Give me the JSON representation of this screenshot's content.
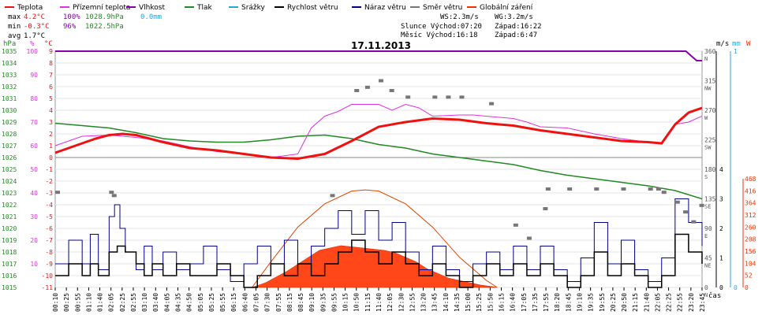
{
  "chart_data": {
    "type": "line",
    "title": "17.11.2013",
    "legend_placement": "top",
    "legend": [
      {
        "name": "Teplota",
        "color": "#ee1111"
      },
      {
        "name": "Přízemní teplota",
        "color": "#dd33dd"
      },
      {
        "name": "Vlhkost",
        "color": "#8800aa"
      },
      {
        "name": "Tlak",
        "color": "#228822"
      },
      {
        "name": "Srážky",
        "color": "#22aadd"
      },
      {
        "name": "Rychlost větru",
        "color": "#000000"
      },
      {
        "name": "Náraz větru",
        "color": "#000088"
      },
      {
        "name": "Směr větru",
        "color": "#777777"
      },
      {
        "name": "Globální záření",
        "color": "#ee3300"
      }
    ],
    "stats": {
      "max": {
        "label": "max",
        "temp": "4.2°C",
        "hum": "100%",
        "press": "1028.9hPa",
        "rain": "0.0mm"
      },
      "min": {
        "label": "min",
        "temp": "-0.3°C",
        "hum": "96%",
        "press": "1022.5hPa"
      },
      "avg": {
        "label": "avg",
        "temp": "1.7°C"
      }
    },
    "info": {
      "ws": "WS:2.3m/s",
      "wg": "WG:3.2m/s",
      "sun_rise": "Slunce Východ:07:20",
      "sun_set": "Západ:16:22",
      "moon_rise": "Měsíc  Východ:16:18",
      "moon_set": "Západ:6:47"
    },
    "axes": {
      "hpa": {
        "unit": "hPa",
        "ticks": [
          1015,
          1016,
          1017,
          1018,
          1019,
          1020,
          1021,
          1022,
          1023,
          1024,
          1025,
          1026,
          1027,
          1028,
          1029,
          1030,
          1031,
          1032,
          1033,
          1034,
          1035
        ]
      },
      "pct": {
        "unit": "%",
        "ticks": [
          10,
          20,
          30,
          40,
          50,
          60,
          70,
          80,
          90,
          100
        ]
      },
      "temp": {
        "unit": "°C",
        "ticks": [
          -11,
          -10,
          -9,
          -8,
          -7,
          -6,
          -5,
          -4,
          -3,
          -2,
          -1,
          0,
          1,
          2,
          3,
          4,
          5,
          6,
          7,
          8,
          9
        ]
      },
      "dir": {
        "ticks": [
          {
            "v": 0,
            "t": "0"
          },
          {
            "v": 45,
            "t": "45"
          },
          {
            "v": 90,
            "t": "90"
          },
          {
            "v": 135,
            "t": "135"
          },
          {
            "v": 180,
            "t": "180"
          },
          {
            "v": 225,
            "t": "225"
          },
          {
            "v": 270,
            "t": "270"
          },
          {
            "v": 315,
            "t": "315"
          },
          {
            "v": 360,
            "t": "360"
          }
        ],
        "compass": [
          {
            "v": 0,
            "t": "N"
          },
          {
            "v": 45,
            "t": "NE"
          },
          {
            "v": 90,
            "t": "E"
          },
          {
            "v": 135,
            "t": "SE"
          },
          {
            "v": 180,
            "t": "S"
          },
          {
            "v": 225,
            "t": "SW"
          },
          {
            "v": 270,
            "t": "W"
          },
          {
            "v": 315,
            "t": "NW"
          },
          {
            "v": 360,
            "t": "N"
          }
        ]
      },
      "ms": {
        "unit": "m/s",
        "ticks": [
          0,
          1,
          2,
          3,
          4
        ]
      },
      "mm": {
        "unit": "mm",
        "ticks": [
          0,
          1
        ]
      },
      "w": {
        "unit": "W",
        "ticks": [
          0,
          52,
          104,
          156,
          208,
          260,
          312,
          364,
          416,
          468
        ]
      },
      "x": {
        "label": "čas",
        "ticks": [
          "00:10",
          "00:25",
          "00:55",
          "01:10",
          "01:40",
          "02:05",
          "02:25",
          "02:55",
          "03:10",
          "03:40",
          "04:05",
          "04:35",
          "04:50",
          "05:05",
          "05:25",
          "05:55",
          "06:15",
          "06:40",
          "07:05",
          "07:30",
          "07:55",
          "08:15",
          "08:45",
          "09:10",
          "09:35",
          "09:55",
          "10:15",
          "10:50",
          "11:15",
          "11:40",
          "12:05",
          "12:30",
          "12:55",
          "13:20",
          "13:45",
          "14:10",
          "14:35",
          "15:00",
          "15:25",
          "15:50",
          "16:15",
          "16:40",
          "17:05",
          "17:35",
          "17:55",
          "18:20",
          "18:45",
          "19:10",
          "19:35",
          "19:55",
          "20:25",
          "20:50",
          "21:15",
          "21:40",
          "22:05",
          "22:25",
          "22:55",
          "23:20",
          "23:45"
        ]
      }
    },
    "series": [
      {
        "name": "Teplota",
        "axis": "temp",
        "x": [
          0,
          1,
          1.5,
          2,
          2.5,
          3,
          4,
          5,
          6,
          7,
          8,
          9,
          10,
          11,
          12,
          13,
          14,
          15,
          16,
          17,
          18,
          19,
          20,
          21,
          22,
          22.5,
          23,
          23.5,
          24
        ],
        "y": [
          0.4,
          1.2,
          1.6,
          1.9,
          2.0,
          1.9,
          1.3,
          0.8,
          0.6,
          0.3,
          0.0,
          -0.1,
          0.3,
          1.4,
          2.6,
          3.0,
          3.3,
          3.2,
          2.9,
          2.7,
          2.3,
          2.0,
          1.7,
          1.4,
          1.3,
          1.2,
          2.8,
          3.8,
          4.2
        ]
      },
      {
        "name": "Přízemní teplota",
        "axis": "temp",
        "x": [
          0,
          0.5,
          1,
          2,
          3,
          4,
          5,
          6,
          7,
          8,
          9,
          9.5,
          10,
          10.5,
          11,
          11.5,
          12,
          12.5,
          13,
          13.5,
          14,
          15,
          15.5,
          16,
          17,
          17.5,
          18,
          19,
          20,
          21,
          22,
          22.5,
          23,
          23.5,
          24
        ],
        "y": [
          1.0,
          1.4,
          1.8,
          1.9,
          1.7,
          1.4,
          0.9,
          0.5,
          0.3,
          0.0,
          0.3,
          2.5,
          3.5,
          3.9,
          4.5,
          4.5,
          4.5,
          4.0,
          4.5,
          4.2,
          3.5,
          3.6,
          3.6,
          3.5,
          3.3,
          3.0,
          2.6,
          2.5,
          2.0,
          1.6,
          1.3,
          1.2,
          2.8,
          3.0,
          3.5
        ]
      },
      {
        "name": "Vlhkost",
        "axis": "pct",
        "x": [
          0,
          23.4,
          23.6,
          23.8,
          24
        ],
        "y": [
          100,
          100,
          98,
          96,
          96
        ]
      },
      {
        "name": "Tlak",
        "axis": "hpa",
        "x": [
          0,
          1,
          2,
          3,
          4,
          5,
          6,
          7,
          8,
          9,
          10,
          11,
          12,
          13,
          14,
          15,
          16,
          17,
          18,
          19,
          20,
          21,
          22,
          23,
          24
        ],
        "y": [
          1028.9,
          1028.7,
          1028.5,
          1028.1,
          1027.6,
          1027.4,
          1027.3,
          1027.3,
          1027.5,
          1027.8,
          1027.9,
          1027.6,
          1027.1,
          1026.8,
          1026.3,
          1026.0,
          1025.7,
          1025.4,
          1024.9,
          1024.5,
          1024.2,
          1023.9,
          1023.6,
          1023.2,
          1022.5
        ]
      },
      {
        "name": "Rychlost větru",
        "axis": "ms",
        "x": [
          0,
          0.5,
          1,
          1.3,
          1.6,
          2,
          2.3,
          2.6,
          3,
          3.3,
          3.6,
          4,
          4.5,
          5,
          5.5,
          6,
          6.5,
          7,
          7.5,
          8,
          8.5,
          9,
          9.5,
          10,
          10.5,
          11,
          11.5,
          12,
          12.5,
          13,
          13.5,
          14,
          14.5,
          15,
          15.5,
          16,
          16.5,
          17,
          17.5,
          18,
          18.5,
          19,
          19.5,
          20,
          20.5,
          21,
          21.5,
          22,
          22.5,
          23,
          23.5,
          24
        ],
        "y": [
          0.4,
          0.8,
          0.4,
          0.8,
          0.4,
          1.2,
          1.4,
          1.2,
          0.8,
          0.4,
          0.8,
          0.4,
          0.8,
          0.4,
          0.4,
          0.8,
          0.4,
          0.0,
          0.4,
          0.8,
          0.4,
          0.8,
          0.4,
          0.8,
          1.2,
          1.6,
          1.2,
          0.8,
          1.2,
          0.8,
          0.4,
          0.8,
          0.4,
          0.0,
          0.4,
          0.8,
          0.4,
          0.8,
          0.4,
          0.8,
          0.4,
          0.0,
          0.4,
          1.2,
          0.4,
          0.8,
          0.4,
          0.0,
          0.4,
          1.8,
          1.2,
          0.8
        ]
      },
      {
        "name": "Náraz větru",
        "axis": "ms",
        "x": [
          0,
          0.5,
          1,
          1.3,
          1.6,
          2,
          2.2,
          2.4,
          2.6,
          3,
          3.3,
          3.6,
          4,
          4.5,
          5,
          5.5,
          6,
          6.5,
          7,
          7.5,
          8,
          8.5,
          9,
          9.5,
          10,
          10.5,
          11,
          11.5,
          12,
          12.5,
          13,
          13.5,
          14,
          14.5,
          15,
          15.5,
          16,
          16.5,
          17,
          17.5,
          18,
          18.5,
          19,
          19.5,
          20,
          20.5,
          21,
          21.5,
          22,
          22.5,
          23,
          23.5,
          24
        ],
        "y": [
          0.8,
          1.6,
          0.8,
          1.8,
          0.6,
          2.4,
          2.8,
          2.0,
          1.2,
          0.6,
          1.4,
          0.6,
          1.2,
          0.6,
          0.8,
          1.4,
          0.6,
          0.2,
          0.8,
          1.4,
          0.8,
          1.6,
          0.8,
          1.4,
          2.0,
          2.6,
          1.8,
          2.6,
          1.6,
          2.2,
          1.2,
          0.6,
          1.4,
          0.6,
          0.2,
          0.8,
          1.2,
          0.6,
          1.4,
          0.6,
          1.4,
          0.6,
          0.2,
          1.0,
          2.2,
          0.8,
          1.6,
          0.6,
          0.2,
          1.0,
          3.0,
          2.2,
          1.4
        ]
      },
      {
        "name": "Směr větru",
        "axis": "dir",
        "x": [
          0,
          2,
          2.1,
          10.2,
          11.1,
          11.5,
          12,
          12.4,
          13,
          14,
          14.5,
          15,
          16.1,
          17,
          17.5,
          18.1,
          18.2,
          19,
          20,
          21,
          22,
          22.3,
          22.5,
          23,
          23.3,
          23.6,
          23.9
        ],
        "y": [
          145,
          145,
          140,
          140,
          300,
          305,
          315,
          300,
          290,
          290,
          290,
          290,
          280,
          95,
          75,
          120,
          150,
          150,
          150,
          150,
          150,
          150,
          145,
          130,
          115,
          100,
          125
        ]
      },
      {
        "name": "Globální záření",
        "axis": "w",
        "x": [
          7.3,
          7.8,
          8.2,
          8.6,
          9,
          9.4,
          9.8,
          10.2,
          10.6,
          11,
          11.4,
          11.8,
          12.2,
          12.6,
          13,
          13.4,
          13.8,
          14.2,
          14.6,
          15,
          15.4,
          15.8,
          16.2,
          16.4
        ],
        "y": [
          0,
          20,
          45,
          70,
          100,
          130,
          160,
          170,
          180,
          175,
          170,
          165,
          160,
          150,
          130,
          110,
          80,
          60,
          40,
          30,
          20,
          10,
          4,
          0
        ]
      },
      {
        "name": "clear-sky",
        "axis": "w",
        "x": [
          7.3,
          8,
          9,
          10,
          11,
          11.5,
          12,
          13,
          14,
          15,
          16,
          16.4
        ],
        "y": [
          0,
          110,
          260,
          360,
          415,
          420,
          415,
          360,
          260,
          130,
          30,
          0
        ]
      }
    ]
  }
}
